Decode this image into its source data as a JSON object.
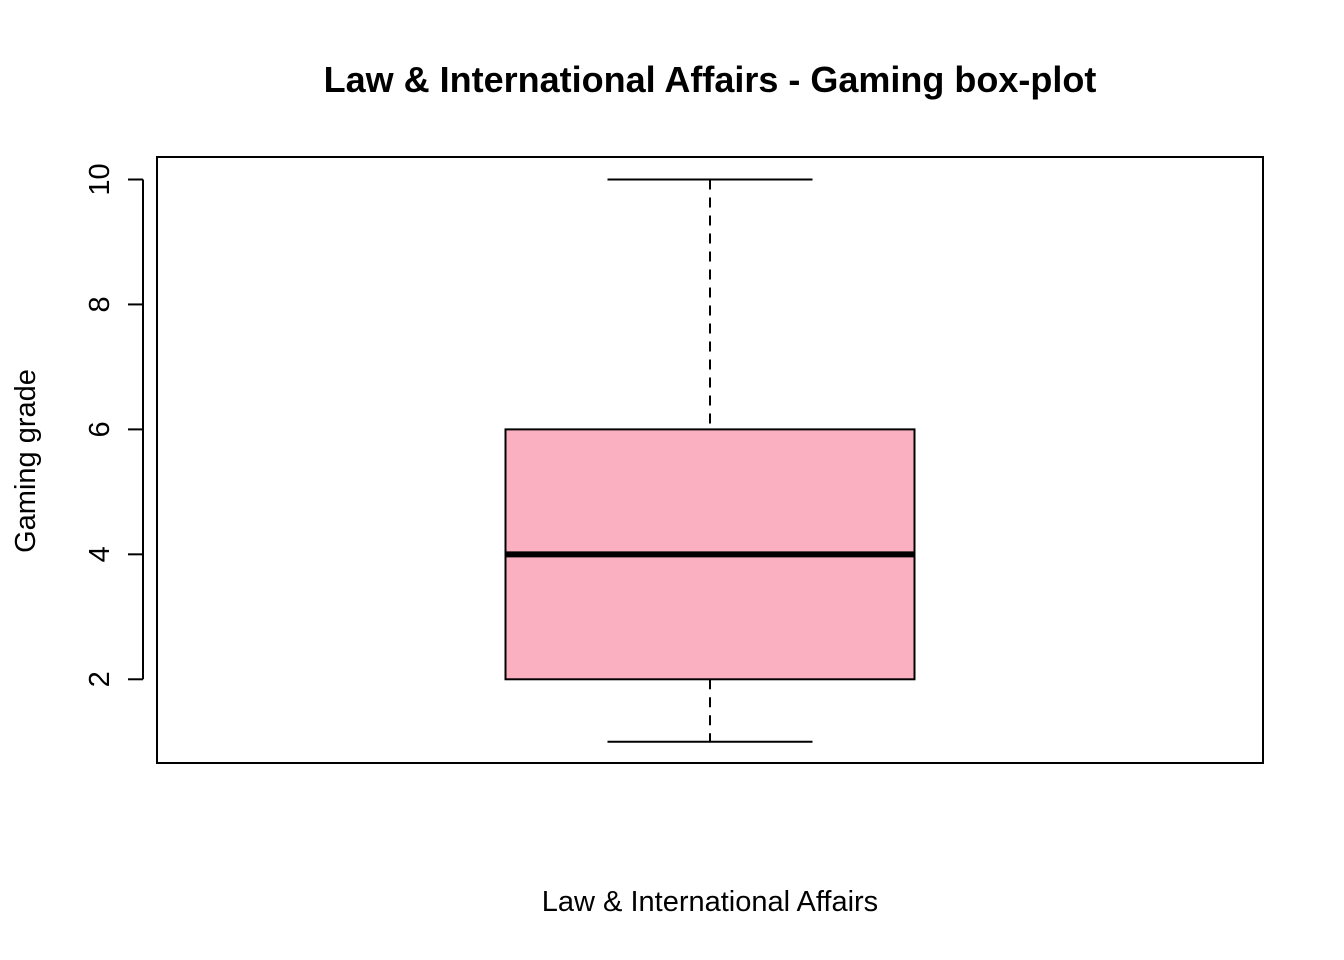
{
  "chart_data": {
    "type": "box",
    "title": "Law & International Affairs - Gaming box-plot",
    "xlabel": "Law & International Affairs",
    "ylabel": "Gaming grade",
    "ylim": [
      0.66,
      10.36
    ],
    "yticks": [
      2,
      4,
      6,
      8,
      10
    ],
    "grid": false,
    "legend": "none",
    "boxes": [
      {
        "min": 1,
        "q1": 2,
        "median": 4,
        "q3": 6,
        "max": 10,
        "fill": "#FBB0C2"
      }
    ]
  }
}
